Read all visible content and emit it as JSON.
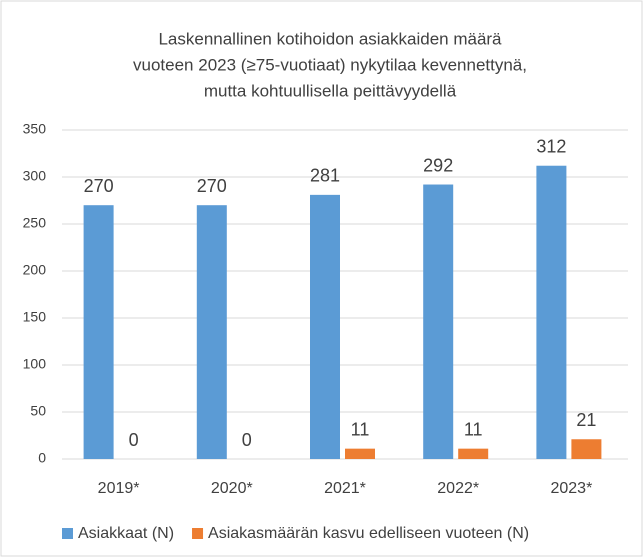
{
  "chart_data": {
    "type": "bar",
    "title": [
      "Laskennallinen kotihoidon asiakkaiden määrä",
      "vuoteen 2023 (≥75-vuotiaat) nykytilaa kevennettynä,",
      "mutta kohtuullisella peittävyydellä"
    ],
    "categories": [
      "2019*",
      "2020*",
      "2021*",
      "2022*",
      "2023*"
    ],
    "series": [
      {
        "name": "Asiakkaat (N)",
        "color": "#5b9bd5",
        "values": [
          270,
          270,
          281,
          292,
          312
        ]
      },
      {
        "name": "Asiakasmäärän kasvu edelliseen vuoteen (N)",
        "color": "#ed7d31",
        "values": [
          0,
          0,
          11,
          11,
          21
        ]
      }
    ],
    "ylim": [
      0,
      350
    ],
    "yticks": [
      0,
      50,
      100,
      150,
      200,
      250,
      300,
      350
    ],
    "grid": true,
    "legend": "bottom"
  }
}
